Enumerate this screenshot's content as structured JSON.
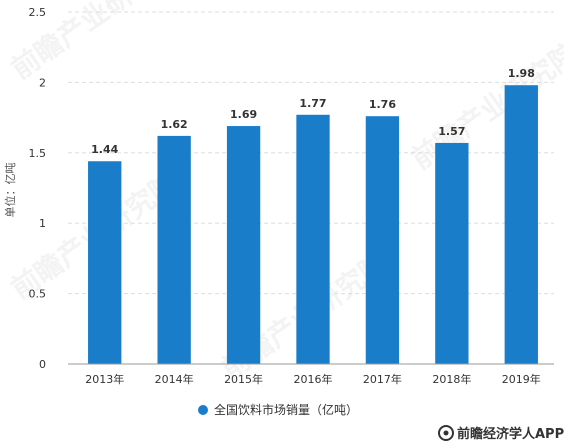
{
  "chart_data": {
    "type": "bar",
    "categories": [
      "2013年",
      "2014年",
      "2015年",
      "2016年",
      "2017年",
      "2018年",
      "2019年"
    ],
    "values": [
      1.44,
      1.62,
      1.69,
      1.77,
      1.76,
      1.57,
      1.98
    ],
    "data_labels": [
      "1.44",
      "1.62",
      "1.69",
      "1.77",
      "1.76",
      "1.57",
      "1.98"
    ],
    "ylabel": "单位：亿吨",
    "ylim": [
      0,
      2.5
    ],
    "yticks": [
      0,
      0.5,
      1,
      1.5,
      2,
      2.5
    ],
    "ytick_labels": [
      "0",
      "0.5",
      "1",
      "1.5",
      "2",
      "2.5"
    ],
    "grid": true,
    "legend": {
      "position": "bottom-center",
      "entries": [
        "全国饮料市场销量（亿吨）"
      ]
    },
    "bar_color": "#1a7dc9",
    "grid_color": "#dddddd"
  },
  "watermark": {
    "text": "前瞻经济学人APP",
    "icon": "qianzhan-logo-icon",
    "background_text": "前瞻产业研究院"
  }
}
